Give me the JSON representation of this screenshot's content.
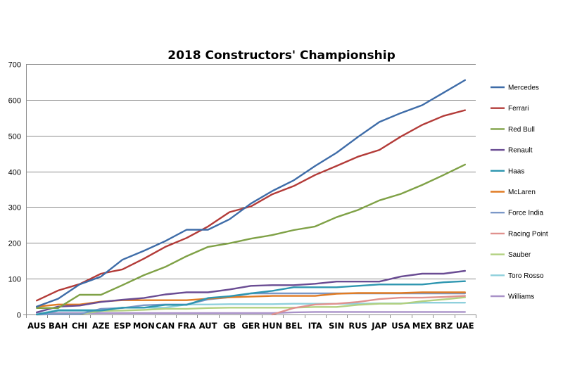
{
  "chart_data": {
    "type": "line",
    "title": "2018 Constructors' Championship",
    "xlabel": "",
    "ylabel": "",
    "ylim": [
      0,
      700
    ],
    "yticks": [
      0,
      100,
      200,
      300,
      400,
      500,
      600,
      700
    ],
    "grid": "horizontal",
    "legend_position": "right",
    "categories": [
      "AUS",
      "BAH",
      "CHI",
      "AZE",
      "ESP",
      "MON",
      "CAN",
      "FRA",
      "AUT",
      "GB",
      "GER",
      "HUN",
      "BEL",
      "ITA",
      "SIN",
      "RUS",
      "JAP",
      "USA",
      "MEX",
      "BRZ",
      "UAE"
    ],
    "series": [
      {
        "name": "Mercedes",
        "color": "#3e6ca8",
        "values": [
          22,
          44,
          84,
          106,
          153,
          178,
          205,
          237,
          237,
          266,
          310,
          345,
          375,
          415,
          452,
          496,
          538,
          563,
          585,
          620,
          655
        ]
      },
      {
        "name": "Ferrari",
        "color": "#b33b38",
        "values": [
          39,
          67,
          85,
          114,
          126,
          156,
          189,
          214,
          246,
          286,
          302,
          336,
          359,
          390,
          415,
          441,
          460,
          497,
          530,
          555,
          571
        ]
      },
      {
        "name": "Red Bull",
        "color": "#7fa146",
        "values": [
          18,
          18,
          55,
          55,
          82,
          110,
          133,
          163,
          189,
          199,
          212,
          222,
          236,
          246,
          272,
          292,
          319,
          337,
          362,
          390,
          419
        ]
      },
      {
        "name": "Renault",
        "color": "#6a4c93",
        "values": [
          6,
          22,
          25,
          35,
          41,
          46,
          56,
          62,
          62,
          70,
          80,
          82,
          82,
          86,
          92,
          92,
          92,
          106,
          114,
          114,
          122
        ]
      },
      {
        "name": "Haas",
        "color": "#2e96b0",
        "values": [
          0,
          11,
          11,
          11,
          19,
          19,
          27,
          27,
          46,
          51,
          59,
          66,
          76,
          76,
          76,
          80,
          84,
          84,
          84,
          90,
          93
        ]
      },
      {
        "name": "McLaren",
        "color": "#e07b24",
        "values": [
          22,
          28,
          28,
          36,
          40,
          40,
          40,
          40,
          44,
          48,
          50,
          52,
          52,
          52,
          58,
          60,
          60,
          60,
          62,
          62,
          62
        ]
      },
      {
        "name": "Force India",
        "color": "#7b98c8",
        "values": [
          0,
          1,
          1,
          16,
          18,
          26,
          28,
          28,
          42,
          48,
          59,
          59,
          59,
          59,
          59,
          59,
          59,
          59,
          59,
          59,
          59
        ]
      },
      {
        "name": "Racing Point",
        "color": "#e0918e",
        "values": [
          null,
          null,
          null,
          null,
          null,
          null,
          null,
          null,
          null,
          null,
          null,
          0,
          18,
          28,
          30,
          35,
          43,
          47,
          47,
          49,
          52
        ]
      },
      {
        "name": "Sauber",
        "color": "#b2d080",
        "values": [
          0,
          1,
          1,
          10,
          11,
          13,
          16,
          16,
          18,
          19,
          19,
          19,
          19,
          21,
          21,
          27,
          30,
          30,
          37,
          42,
          48
        ]
      },
      {
        "name": "Toro Rosso",
        "color": "#8fd0dc",
        "values": [
          1,
          13,
          13,
          13,
          19,
          19,
          19,
          28,
          28,
          29,
          29,
          29,
          30,
          30,
          30,
          30,
          31,
          31,
          33,
          33,
          33
        ]
      },
      {
        "name": "Williams",
        "color": "#a992c8",
        "values": [
          4,
          4,
          4,
          4,
          4,
          4,
          4,
          4,
          4,
          4,
          4,
          4,
          6,
          7,
          7,
          7,
          7,
          7,
          7,
          7,
          7
        ]
      }
    ]
  }
}
